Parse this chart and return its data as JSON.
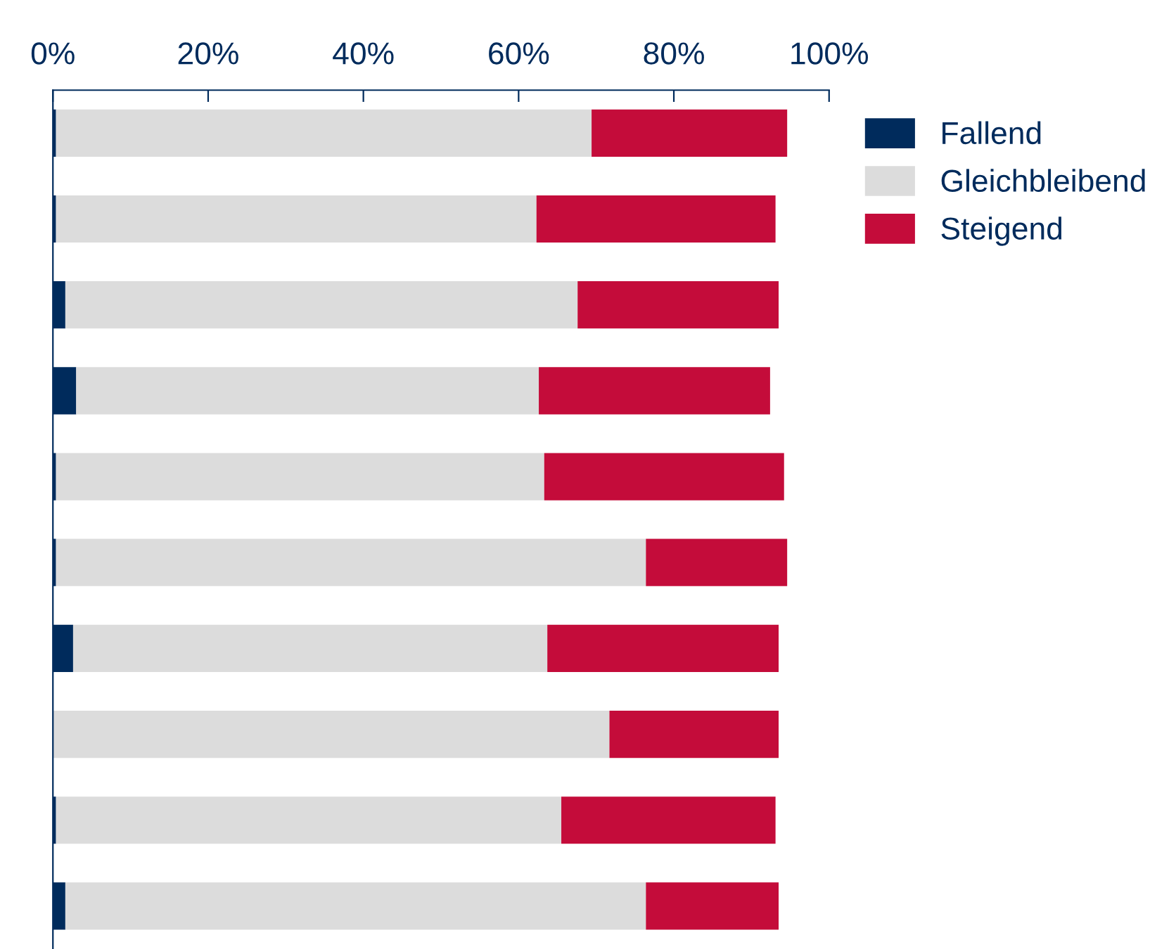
{
  "chart_data": {
    "type": "bar",
    "orientation": "horizontal",
    "stacked": true,
    "categories": [
      null,
      null,
      null,
      null,
      null,
      null,
      null,
      null,
      null,
      null
    ],
    "series": [
      {
        "name": "Fallend",
        "color": "#002b5c",
        "values": [
          0.4,
          0.4,
          1.6,
          3.0,
          0.4,
          0.4,
          2.6,
          0,
          0.4,
          1.6
        ]
      },
      {
        "name": "Gleichbleibend",
        "color": "#dcdcdc",
        "values": [
          69.0,
          61.9,
          66.0,
          59.6,
          62.9,
          76.0,
          61.1,
          71.7,
          65.1,
          74.8
        ]
      },
      {
        "name": "Steigend",
        "color": "#c40c3a",
        "values": [
          25.2,
          30.8,
          25.9,
          29.8,
          30.9,
          18.2,
          29.8,
          21.8,
          27.6,
          17.1
        ]
      }
    ],
    "xlim": [
      0,
      100
    ],
    "xticks": [
      {
        "value": 0,
        "label": "0%"
      },
      {
        "value": 20,
        "label": "20%"
      },
      {
        "value": 40,
        "label": "40%"
      },
      {
        "value": 60,
        "label": "60%"
      },
      {
        "value": 80,
        "label": "80%"
      },
      {
        "value": 100,
        "label": "100%"
      }
    ],
    "grid": false,
    "legend": "top right"
  }
}
